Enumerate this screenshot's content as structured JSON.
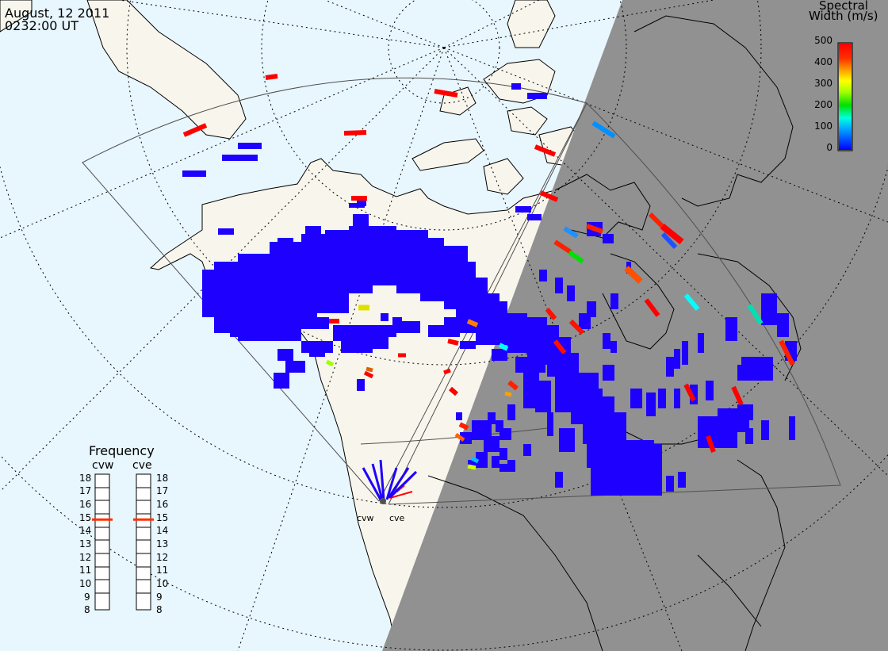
{
  "header": {
    "date": "August, 12 2011",
    "time": "0232:00 UT"
  },
  "colorbar": {
    "title_line1": "Spectral",
    "title_line2": "Width (m/s)",
    "ticks": [
      "500",
      "400",
      "300",
      "200",
      "100",
      "0"
    ],
    "range": [
      0,
      500
    ],
    "colors": [
      "#0000ff",
      "#00a0ff",
      "#00ffff",
      "#00e000",
      "#a0ff00",
      "#ffff00",
      "#ffa000",
      "#ff4000",
      "#ff0000"
    ]
  },
  "frequency_panel": {
    "title": "Frequency",
    "channels": [
      {
        "name": "cvw",
        "current_mhz": 15
      },
      {
        "name": "cve",
        "current_mhz": 15
      }
    ],
    "scale": [
      "18",
      "17",
      "16",
      "15",
      "14",
      "13",
      "12",
      "11",
      "10",
      "9",
      "8"
    ],
    "marker_color": "#ff3000"
  },
  "radar_sites": [
    {
      "label": "cvw"
    },
    {
      "label": "cve"
    }
  ],
  "map": {
    "ocean_color": "#e8f6fd",
    "land_day_color": "#f8f6ec",
    "night_color": "#919191",
    "echo_primary_color": "#1e00ff"
  }
}
